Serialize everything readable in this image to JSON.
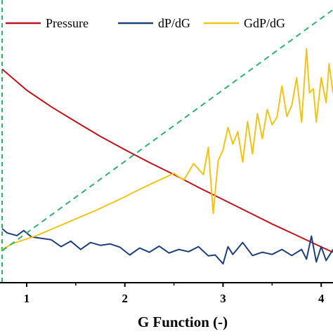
{
  "chart_data": {
    "type": "line",
    "xlabel": "G Function (-)",
    "ylabel": "",
    "xlim": [
      0.75,
      4.12
    ],
    "ylim": [
      0,
      1
    ],
    "x_ticks": [
      1,
      2,
      3,
      4
    ],
    "x_tick_labels": [
      "1",
      "2",
      "3",
      "4"
    ],
    "grid": false,
    "legend_position": "top",
    "series": [
      {
        "name": "Pressure",
        "color": "#c0141c",
        "style": "solid",
        "x": [
          0.75,
          1.0,
          1.25,
          1.5,
          1.75,
          2.0,
          2.25,
          2.5,
          2.75,
          3.0,
          3.25,
          3.5,
          3.75,
          4.0,
          4.12
        ],
        "y": [
          0.771,
          0.695,
          0.635,
          0.581,
          0.528,
          0.48,
          0.434,
          0.39,
          0.344,
          0.3,
          0.256,
          0.212,
          0.171,
          0.129,
          0.11
        ]
      },
      {
        "name": "dP/dG",
        "color": "#1f3f7a",
        "style": "solid",
        "x": [
          0.75,
          0.8,
          0.9,
          0.97,
          1.05,
          1.15,
          1.25,
          1.35,
          1.45,
          1.55,
          1.65,
          1.75,
          1.85,
          1.95,
          2.05,
          2.15,
          2.25,
          2.35,
          2.45,
          2.55,
          2.65,
          2.75,
          2.85,
          2.92,
          3.0,
          3.05,
          3.1,
          3.2,
          3.3,
          3.4,
          3.5,
          3.6,
          3.7,
          3.8,
          3.85,
          3.9,
          3.95,
          4.0,
          4.05,
          4.12
        ],
        "y": [
          0.195,
          0.18,
          0.17,
          0.188,
          0.165,
          0.16,
          0.155,
          0.13,
          0.15,
          0.12,
          0.145,
          0.135,
          0.14,
          0.128,
          0.1,
          0.125,
          0.11,
          0.132,
          0.107,
          0.12,
          0.112,
          0.13,
          0.097,
          0.1,
          0.068,
          0.13,
          0.102,
          0.145,
          0.098,
          0.11,
          0.102,
          0.12,
          0.098,
          0.12,
          0.085,
          0.168,
          0.075,
          0.13,
          0.08,
          0.12
        ]
      },
      {
        "name": "GdP/dG",
        "color": "#f0c419",
        "style": "solid",
        "x": [
          0.75,
          0.85,
          1.0,
          1.1,
          1.2,
          1.3,
          1.4,
          1.5,
          1.6,
          1.7,
          1.8,
          1.9,
          2.0,
          2.1,
          2.2,
          2.3,
          2.4,
          2.5,
          2.6,
          2.7,
          2.8,
          2.85,
          2.9,
          2.95,
          3.0,
          3.05,
          3.1,
          3.15,
          3.2,
          3.25,
          3.3,
          3.35,
          3.4,
          3.45,
          3.5,
          3.55,
          3.6,
          3.65,
          3.7,
          3.75,
          3.8,
          3.85,
          3.88,
          3.92,
          3.95,
          4.0,
          4.05,
          4.08,
          4.12
        ],
        "y": [
          0.12,
          0.14,
          0.158,
          0.17,
          0.185,
          0.2,
          0.215,
          0.23,
          0.245,
          0.26,
          0.277,
          0.293,
          0.31,
          0.328,
          0.345,
          0.362,
          0.378,
          0.395,
          0.37,
          0.43,
          0.39,
          0.488,
          0.25,
          0.44,
          0.48,
          0.56,
          0.5,
          0.545,
          0.435,
          0.582,
          0.465,
          0.61,
          0.52,
          0.625,
          0.57,
          0.598,
          0.71,
          0.6,
          0.64,
          0.74,
          0.58,
          0.845,
          0.685,
          0.7,
          0.58,
          0.74,
          0.65,
          0.79,
          0.685
        ]
      },
      {
        "name": "",
        "color": "#2db36b",
        "style": "dashed",
        "x": [
          0.75,
          4.12
        ],
        "y": [
          0.115,
          0.985
        ]
      }
    ],
    "vertical_line": {
      "x": 0.75,
      "color": "#2db36b",
      "style": "dashed"
    }
  }
}
